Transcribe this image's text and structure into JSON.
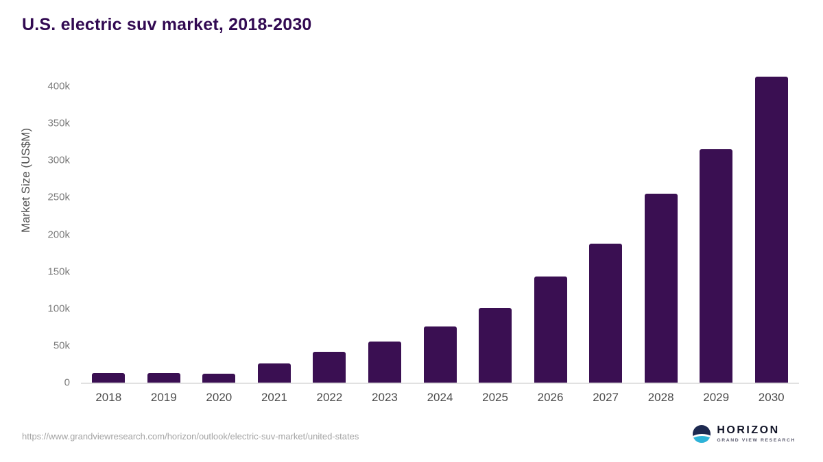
{
  "title": "U.S. electric suv market, 2018-2030",
  "chart_data": {
    "type": "bar",
    "title": "U.S. electric suv market, 2018-2030",
    "xlabel": "",
    "ylabel": "Market Size (US$M)",
    "categories": [
      "2018",
      "2019",
      "2020",
      "2021",
      "2022",
      "2023",
      "2024",
      "2025",
      "2026",
      "2027",
      "2028",
      "2029",
      "2030"
    ],
    "values": [
      13000,
      13000,
      12000,
      26000,
      42000,
      55000,
      76000,
      101000,
      143000,
      188000,
      255000,
      315000,
      413000
    ],
    "ytick_values": [
      0,
      50000,
      100000,
      150000,
      200000,
      250000,
      300000,
      350000,
      400000
    ],
    "ytick_labels": [
      "0",
      "50k",
      "100k",
      "150k",
      "200k",
      "250k",
      "300k",
      "350k",
      "400k"
    ],
    "ylim": [
      0,
      425000
    ],
    "grid": false,
    "legend": "none",
    "bar_color": "#3a0f52"
  },
  "footer": {
    "source_url": "https://www.grandviewresearch.com/horizon/outlook/electric-suv-market/united-states",
    "logo": {
      "name": "HORIZON",
      "subtext": "GRAND VIEW RESEARCH"
    }
  }
}
